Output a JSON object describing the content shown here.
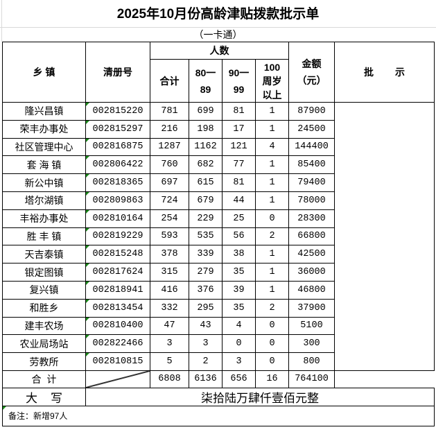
{
  "title": "2025年10月份高龄津贴拨款批示单",
  "subtitle": "（一卡通）",
  "headers": {
    "town": "乡  镇",
    "register": "清册号",
    "people": "人数",
    "total": "合计",
    "age80": "80一89",
    "age90": "90一99",
    "age100": "100周岁以上",
    "amount": "金额（元）",
    "approval": "批        示"
  },
  "rows": [
    {
      "town": "隆兴昌镇",
      "register": "002815220",
      "total": "781",
      "age80": "699",
      "age90": "81",
      "age100": "1",
      "amount": "87900"
    },
    {
      "town": "荣丰办事处",
      "register": "002815297",
      "total": "216",
      "age80": "198",
      "age90": "17",
      "age100": "1",
      "amount": "24500"
    },
    {
      "town": "社区管理中心",
      "register": "002816875",
      "total": "1287",
      "age80": "1162",
      "age90": "121",
      "age100": "4",
      "amount": "144400"
    },
    {
      "town": "套 海 镇",
      "register": "002806422",
      "total": "760",
      "age80": "682",
      "age90": "77",
      "age100": "1",
      "amount": "85400"
    },
    {
      "town": "新公中镇",
      "register": "002818365",
      "total": "697",
      "age80": "615",
      "age90": "81",
      "age100": "1",
      "amount": "79400"
    },
    {
      "town": "塔尔湖镇",
      "register": "002809863",
      "total": "724",
      "age80": "679",
      "age90": "44",
      "age100": "1",
      "amount": "78000"
    },
    {
      "town": "丰裕办事处",
      "register": "002810164",
      "total": "254",
      "age80": "229",
      "age90": "25",
      "age100": "0",
      "amount": "28300"
    },
    {
      "town": "胜 丰 镇",
      "register": "002819229",
      "total": "593",
      "age80": "535",
      "age90": "56",
      "age100": "2",
      "amount": "66800"
    },
    {
      "town": "天吉泰镇",
      "register": "002815248",
      "total": "378",
      "age80": "339",
      "age90": "38",
      "age100": "1",
      "amount": "42500"
    },
    {
      "town": "银定图镇",
      "register": "002817624",
      "total": "315",
      "age80": "279",
      "age90": "35",
      "age100": "1",
      "amount": "36000"
    },
    {
      "town": "复兴镇",
      "register": "002818941",
      "total": "416",
      "age80": "376",
      "age90": "39",
      "age100": "1",
      "amount": "46800"
    },
    {
      "town": "和胜乡",
      "register": "002813454",
      "total": "332",
      "age80": "295",
      "age90": "35",
      "age100": "2",
      "amount": "37900"
    },
    {
      "town": "建丰农场",
      "register": "002810400",
      "total": "47",
      "age80": "43",
      "age90": "4",
      "age100": "0",
      "amount": "5100"
    },
    {
      "town": "农业局场站",
      "register": "002822466",
      "total": "3",
      "age80": "3",
      "age90": "0",
      "age100": "0",
      "amount": "300"
    },
    {
      "town": "劳教所",
      "register": "002810815",
      "total": "5",
      "age80": "2",
      "age90": "3",
      "age100": "0",
      "amount": "800"
    }
  ],
  "totals": {
    "label": "合  计",
    "total": "6808",
    "age80": "6136",
    "age90": "656",
    "age100": "16",
    "amount": "764100"
  },
  "capital": {
    "label": "大    写",
    "value": "柒拾陆万肆仟壹佰元整"
  },
  "note": "备注：新增97人",
  "colors": {
    "border": "#000000",
    "gridline": "#d9d9d9",
    "cell_marker": "#1a8a1a"
  }
}
